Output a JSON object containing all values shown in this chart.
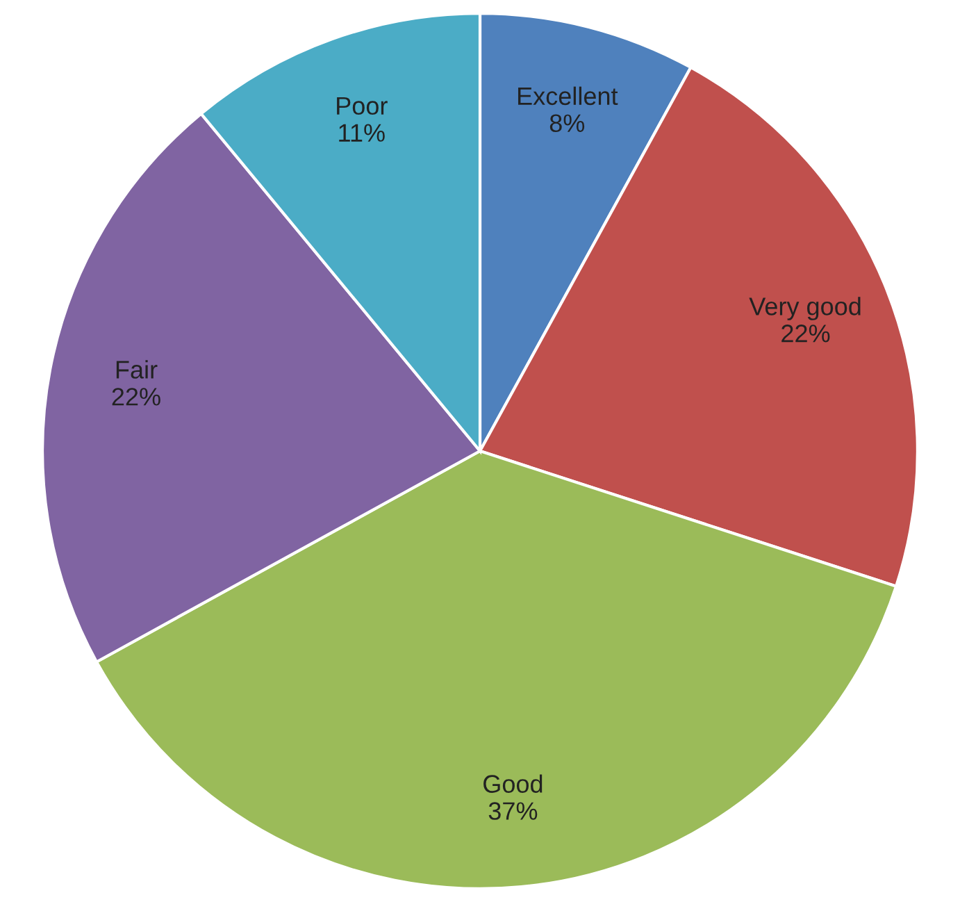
{
  "chart_data": {
    "type": "pie",
    "categories": [
      "Excellent",
      "Very good",
      "Good",
      "Fair",
      "Poor"
    ],
    "values": [
      8,
      22,
      37,
      22,
      11
    ],
    "colors": [
      "#4f81bd",
      "#c0504d",
      "#9bbb59",
      "#8064a2",
      "#4bacc6"
    ],
    "value_labels": [
      "8%",
      "22%",
      "37%",
      "22%",
      "11%"
    ],
    "legend": false
  }
}
